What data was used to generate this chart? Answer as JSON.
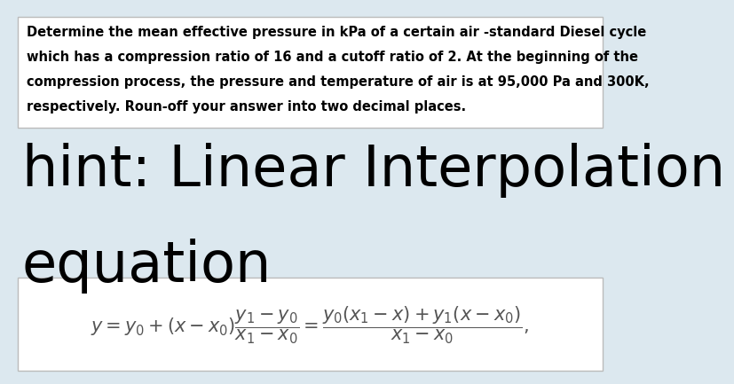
{
  "background_color": "#dce8ef",
  "problem_text_lines": [
    "Determine the mean effective pressure in kPa of a certain air -standard Diesel cycle",
    "which has a compression ratio of 16 and a cutoff ratio of 2. At the beginning of the",
    "compression process, the pressure and temperature of air is at 95,000 Pa and 300K,",
    "respectively. Roun-off your answer into two decimal places."
  ],
  "hint_line1": "hint: Linear Interpolation",
  "hint_line2": "equation",
  "problem_box_color": "#ffffff",
  "problem_box_edge": "#bbbbbb",
  "formula_box_color": "#ffffff",
  "formula_box_edge": "#bbbbbb",
  "problem_font_size": 10.5,
  "hint_font_size": 46,
  "formula_font_size": 15,
  "text_color": "#000000",
  "formula_color": "#555555"
}
